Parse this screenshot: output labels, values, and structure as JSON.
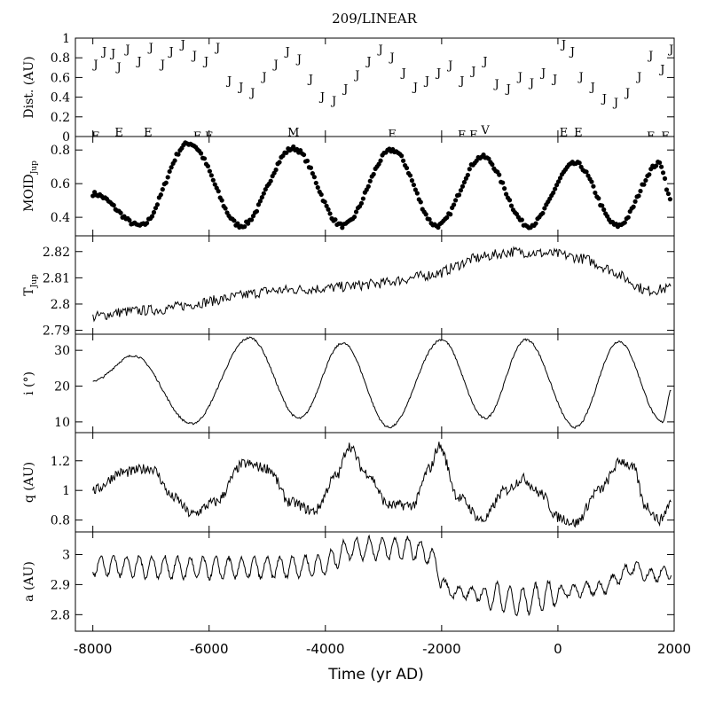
{
  "title": "209/LINEAR",
  "xlabel": "Time (yr AD)",
  "x_ticks": [
    "-8000",
    "-6000",
    "-4000",
    "-2000",
    "0",
    "2000"
  ],
  "colors": {
    "ink": "#000000",
    "background": "#ffffff"
  },
  "chart_data": [
    {
      "type": "scatter",
      "name": "dist",
      "ylabel": "Dist. (AU)",
      "xlim": [
        -8300,
        2000
      ],
      "ylim": [
        0,
        1
      ],
      "yticks": [
        0,
        0.2,
        0.4,
        0.6,
        0.8,
        1
      ],
      "ytick_labels": [
        "0",
        "0.2",
        "0.4",
        "0.6",
        "0.8",
        "1"
      ],
      "points": [
        {
          "x": -7950,
          "y": 0.75,
          "label": "J"
        },
        {
          "x": -7800,
          "y": 0.88,
          "label": "J"
        },
        {
          "x": -7650,
          "y": 0.86,
          "label": "J"
        },
        {
          "x": -7550,
          "y": 0.72,
          "label": "J"
        },
        {
          "x": -7400,
          "y": 0.9,
          "label": "J"
        },
        {
          "x": -7200,
          "y": 0.78,
          "label": "J"
        },
        {
          "x": -7000,
          "y": 0.92,
          "label": "J"
        },
        {
          "x": -6800,
          "y": 0.75,
          "label": "J"
        },
        {
          "x": -6650,
          "y": 0.88,
          "label": "J"
        },
        {
          "x": -6450,
          "y": 0.95,
          "label": "J"
        },
        {
          "x": -6250,
          "y": 0.84,
          "label": "J"
        },
        {
          "x": -6050,
          "y": 0.78,
          "label": "J"
        },
        {
          "x": -5850,
          "y": 0.92,
          "label": "J"
        },
        {
          "x": -5650,
          "y": 0.58,
          "label": "J"
        },
        {
          "x": -5450,
          "y": 0.52,
          "label": "J"
        },
        {
          "x": -5250,
          "y": 0.46,
          "label": "J"
        },
        {
          "x": -5050,
          "y": 0.62,
          "label": "J"
        },
        {
          "x": -4850,
          "y": 0.75,
          "label": "J"
        },
        {
          "x": -4650,
          "y": 0.88,
          "label": "J"
        },
        {
          "x": -4450,
          "y": 0.8,
          "label": "J"
        },
        {
          "x": -4250,
          "y": 0.6,
          "label": "J"
        },
        {
          "x": -4050,
          "y": 0.42,
          "label": "J"
        },
        {
          "x": -3850,
          "y": 0.38,
          "label": "J"
        },
        {
          "x": -3650,
          "y": 0.5,
          "label": "J"
        },
        {
          "x": -3450,
          "y": 0.64,
          "label": "J"
        },
        {
          "x": -3250,
          "y": 0.78,
          "label": "J"
        },
        {
          "x": -3050,
          "y": 0.9,
          "label": "J"
        },
        {
          "x": -2850,
          "y": 0.82,
          "label": "J"
        },
        {
          "x": -2650,
          "y": 0.66,
          "label": "J"
        },
        {
          "x": -2450,
          "y": 0.52,
          "label": "J"
        },
        {
          "x": -2250,
          "y": 0.58,
          "label": "J"
        },
        {
          "x": -2050,
          "y": 0.66,
          "label": "J"
        },
        {
          "x": -1850,
          "y": 0.74,
          "label": "J"
        },
        {
          "x": -1650,
          "y": 0.58,
          "label": "J"
        },
        {
          "x": -1450,
          "y": 0.68,
          "label": "J"
        },
        {
          "x": -1250,
          "y": 0.78,
          "label": "J"
        },
        {
          "x": -1050,
          "y": 0.55,
          "label": "J"
        },
        {
          "x": -850,
          "y": 0.5,
          "label": "J"
        },
        {
          "x": -650,
          "y": 0.62,
          "label": "J"
        },
        {
          "x": -450,
          "y": 0.56,
          "label": "J"
        },
        {
          "x": -250,
          "y": 0.66,
          "label": "J"
        },
        {
          "x": -50,
          "y": 0.6,
          "label": "J"
        },
        {
          "x": 100,
          "y": 0.95,
          "label": "J"
        },
        {
          "x": 250,
          "y": 0.88,
          "label": "J"
        },
        {
          "x": 400,
          "y": 0.62,
          "label": "J"
        },
        {
          "x": 600,
          "y": 0.52,
          "label": "J"
        },
        {
          "x": 800,
          "y": 0.4,
          "label": "J"
        },
        {
          "x": 1000,
          "y": 0.36,
          "label": "J"
        },
        {
          "x": 1200,
          "y": 0.46,
          "label": "J"
        },
        {
          "x": 1400,
          "y": 0.62,
          "label": "J"
        },
        {
          "x": 1600,
          "y": 0.84,
          "label": "J"
        },
        {
          "x": 1800,
          "y": 0.7,
          "label": "J"
        },
        {
          "x": 1950,
          "y": 0.9,
          "label": "J"
        },
        {
          "x": -7950,
          "y": 0.02,
          "label": "E"
        },
        {
          "x": -7550,
          "y": 0.06,
          "label": "E"
        },
        {
          "x": -7050,
          "y": 0.06,
          "label": "E"
        },
        {
          "x": -6200,
          "y": 0.02,
          "label": "E"
        },
        {
          "x": -6000,
          "y": 0.02,
          "label": "E"
        },
        {
          "x": -4550,
          "y": 0.06,
          "label": "M"
        },
        {
          "x": -2850,
          "y": 0.04,
          "label": "E"
        },
        {
          "x": -1650,
          "y": 0.03,
          "label": "E"
        },
        {
          "x": -1450,
          "y": 0.03,
          "label": "E"
        },
        {
          "x": -1250,
          "y": 0.08,
          "label": "V"
        },
        {
          "x": 100,
          "y": 0.06,
          "label": "E"
        },
        {
          "x": 350,
          "y": 0.06,
          "label": "E"
        },
        {
          "x": 1600,
          "y": 0.02,
          "label": "E"
        },
        {
          "x": 1850,
          "y": 0.02,
          "label": "E"
        }
      ]
    },
    {
      "type": "scatter",
      "name": "moid",
      "ylabel": "MOID",
      "ylabel_sub": "Jup",
      "xlim": [
        -8300,
        2000
      ],
      "ylim": [
        0.29,
        0.88
      ],
      "yticks": [
        0.4,
        0.6,
        0.8
      ],
      "ytick_labels": [
        "0.4",
        "0.6",
        "0.8"
      ],
      "baseline": 0.35,
      "peaks": [
        {
          "x": -6350,
          "y": 0.84
        },
        {
          "x": -4550,
          "y": 0.81
        },
        {
          "x": -2850,
          "y": 0.8
        },
        {
          "x": -1300,
          "y": 0.76
        },
        {
          "x": 300,
          "y": 0.72
        },
        {
          "x": 1750,
          "y": 0.72
        }
      ],
      "start_value": 0.54,
      "end_value": 0.5
    },
    {
      "type": "line",
      "name": "tjup",
      "ylabel": "T",
      "ylabel_sub": "Jup",
      "xlim": [
        -8300,
        2000
      ],
      "ylim": [
        2.7885,
        2.826
      ],
      "yticks": [
        2.79,
        2.8,
        2.81,
        2.82
      ],
      "ytick_labels": [
        "2.79",
        "2.8",
        "2.81",
        "2.82"
      ],
      "trend": [
        {
          "x": -8000,
          "y": 2.795
        },
        {
          "x": -7500,
          "y": 2.797
        },
        {
          "x": -6800,
          "y": 2.798
        },
        {
          "x": -6000,
          "y": 2.801
        },
        {
          "x": -5000,
          "y": 2.805
        },
        {
          "x": -4000,
          "y": 2.806
        },
        {
          "x": -3000,
          "y": 2.808
        },
        {
          "x": -2000,
          "y": 2.812
        },
        {
          "x": -1500,
          "y": 2.817
        },
        {
          "x": -800,
          "y": 2.82
        },
        {
          "x": 0,
          "y": 2.819
        },
        {
          "x": 500,
          "y": 2.817
        },
        {
          "x": 1000,
          "y": 2.812
        },
        {
          "x": 1500,
          "y": 2.805
        },
        {
          "x": 1950,
          "y": 2.806
        }
      ]
    },
    {
      "type": "line",
      "name": "incl",
      "ylabel": "i (°)",
      "xlim": [
        -8300,
        2000
      ],
      "ylim": [
        7,
        34.5
      ],
      "yticks": [
        10,
        20,
        30
      ],
      "ytick_labels": [
        "10",
        "20",
        "30"
      ],
      "extrema": [
        {
          "x": -8000,
          "y": 21.5
        },
        {
          "x": -7300,
          "y": 28.5
        },
        {
          "x": -6300,
          "y": 9.5
        },
        {
          "x": -5300,
          "y": 33.5
        },
        {
          "x": -4450,
          "y": 11
        },
        {
          "x": -3700,
          "y": 32
        },
        {
          "x": -2900,
          "y": 8.5
        },
        {
          "x": -2000,
          "y": 33
        },
        {
          "x": -1250,
          "y": 11
        },
        {
          "x": -550,
          "y": 33
        },
        {
          "x": 300,
          "y": 8.5
        },
        {
          "x": 1050,
          "y": 32.5
        },
        {
          "x": 1800,
          "y": 10
        },
        {
          "x": 1950,
          "y": 19
        }
      ]
    },
    {
      "type": "line",
      "name": "q",
      "ylabel": "q (AU)",
      "xlim": [
        -8300,
        2000
      ],
      "ylim": [
        0.72,
        1.39
      ],
      "yticks": [
        0.8,
        1,
        1.2
      ],
      "ytick_labels": [
        "0.8",
        "1",
        "1.2"
      ],
      "trend": [
        {
          "x": -8000,
          "y": 1.0
        },
        {
          "x": -7500,
          "y": 1.12
        },
        {
          "x": -7000,
          "y": 1.15
        },
        {
          "x": -6600,
          "y": 0.95
        },
        {
          "x": -6300,
          "y": 0.84
        },
        {
          "x": -5900,
          "y": 0.92
        },
        {
          "x": -5400,
          "y": 1.18
        },
        {
          "x": -5000,
          "y": 1.15
        },
        {
          "x": -4600,
          "y": 0.92
        },
        {
          "x": -4200,
          "y": 0.86
        },
        {
          "x": -3800,
          "y": 1.1
        },
        {
          "x": -3600,
          "y": 1.3
        },
        {
          "x": -3300,
          "y": 1.12
        },
        {
          "x": -2900,
          "y": 0.9
        },
        {
          "x": -2500,
          "y": 0.9
        },
        {
          "x": -2200,
          "y": 1.15
        },
        {
          "x": -2050,
          "y": 1.3
        },
        {
          "x": -1700,
          "y": 0.95
        },
        {
          "x": -1300,
          "y": 0.8
        },
        {
          "x": -900,
          "y": 1.0
        },
        {
          "x": -600,
          "y": 1.08
        },
        {
          "x": -300,
          "y": 0.98
        },
        {
          "x": 0,
          "y": 0.82
        },
        {
          "x": 300,
          "y": 0.78
        },
        {
          "x": 700,
          "y": 1.0
        },
        {
          "x": 1100,
          "y": 1.2
        },
        {
          "x": 1300,
          "y": 1.15
        },
        {
          "x": 1500,
          "y": 0.9
        },
        {
          "x": 1750,
          "y": 0.8
        },
        {
          "x": 1950,
          "y": 0.92
        }
      ]
    },
    {
      "type": "line",
      "name": "a",
      "ylabel": "a (AU)",
      "xlim": [
        -8300,
        2000
      ],
      "ylim": [
        2.745,
        3.075
      ],
      "yticks": [
        2.8,
        2.9,
        3
      ],
      "ytick_labels": [
        "2.8",
        "2.9",
        "3"
      ],
      "trend": [
        {
          "x": -8000,
          "y": 2.965
        },
        {
          "x": -6500,
          "y": 2.955
        },
        {
          "x": -5000,
          "y": 2.955
        },
        {
          "x": -4000,
          "y": 2.965
        },
        {
          "x": -3600,
          "y": 3.02
        },
        {
          "x": -2500,
          "y": 3.02
        },
        {
          "x": -2200,
          "y": 3.0
        },
        {
          "x": -1900,
          "y": 2.88
        },
        {
          "x": -1000,
          "y": 2.86
        },
        {
          "x": -700,
          "y": 2.84
        },
        {
          "x": 0,
          "y": 2.875
        },
        {
          "x": 800,
          "y": 2.89
        },
        {
          "x": 1300,
          "y": 2.96
        },
        {
          "x": 1550,
          "y": 2.93
        },
        {
          "x": 1950,
          "y": 2.94
        }
      ]
    }
  ]
}
